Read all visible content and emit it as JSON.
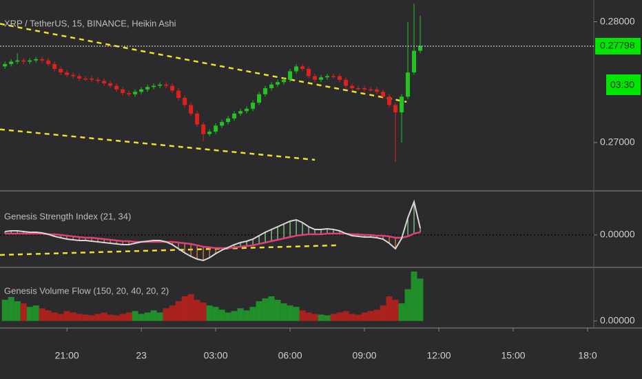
{
  "chart_data": [
    {
      "type": "candlestick",
      "title": "XRP / TetherUS, 15, BINANCE, Heikin Ashi",
      "x": [
        -5.5,
        -5.25,
        -5,
        -4.75,
        -4.5,
        -4.25,
        -4,
        -3.75,
        -3.5,
        -3.25,
        -3,
        -2.75,
        -2.5,
        -2.25,
        -2,
        -1.75,
        -1.5,
        -1.25,
        -1,
        -0.75,
        -0.5,
        -0.25,
        0,
        0.25,
        0.5,
        0.75,
        1,
        1.25,
        1.5,
        1.75,
        2,
        2.25,
        2.5,
        2.75,
        3,
        3.25,
        3.5,
        3.75,
        4,
        4.25,
        4.5,
        4.75,
        5,
        5.25,
        5.5,
        5.75,
        6,
        6.25,
        6.5,
        6.75,
        7,
        7.25,
        7.5,
        7.75,
        8,
        8.25,
        8.5,
        8.75,
        9,
        9.25,
        9.5,
        9.75,
        10,
        10.25,
        10.5,
        10.75,
        11,
        11.25
      ],
      "open": [
        0.2763,
        0.2765,
        0.2767,
        0.2768,
        0.2767,
        0.2768,
        0.2769,
        0.2768,
        0.2765,
        0.2761,
        0.2758,
        0.2756,
        0.2755,
        0.2753,
        0.2753,
        0.2752,
        0.2751,
        0.2749,
        0.2747,
        0.2744,
        0.2741,
        0.274,
        0.2742,
        0.2744,
        0.2746,
        0.2747,
        0.2748,
        0.2747,
        0.2743,
        0.2737,
        0.2731,
        0.2724,
        0.2715,
        0.2707,
        0.2709,
        0.2714,
        0.2717,
        0.272,
        0.2724,
        0.2726,
        0.2728,
        0.2733,
        0.274,
        0.2745,
        0.2748,
        0.275,
        0.2752,
        0.2759,
        0.2763,
        0.2761,
        0.2755,
        0.2752,
        0.2754,
        0.2755,
        0.2755,
        0.2752,
        0.2747,
        0.2745,
        0.2745,
        0.2744,
        0.2744,
        0.2742,
        0.2738,
        0.2731,
        0.2725,
        0.2738,
        0.2758,
        0.2776
      ],
      "high": [
        0.2767,
        0.2769,
        0.2774,
        0.277,
        0.277,
        0.2771,
        0.2771,
        0.277,
        0.2767,
        0.2763,
        0.276,
        0.2758,
        0.2757,
        0.2755,
        0.2755,
        0.2754,
        0.2753,
        0.2751,
        0.2749,
        0.2746,
        0.2743,
        0.2744,
        0.2746,
        0.2748,
        0.2749,
        0.275,
        0.275,
        0.2749,
        0.2745,
        0.2739,
        0.2733,
        0.2726,
        0.2717,
        0.2711,
        0.2716,
        0.2719,
        0.2722,
        0.2726,
        0.2728,
        0.273,
        0.2735,
        0.2742,
        0.2747,
        0.275,
        0.2752,
        0.2754,
        0.2761,
        0.2765,
        0.2765,
        0.2763,
        0.2757,
        0.2756,
        0.2757,
        0.2757,
        0.2757,
        0.2754,
        0.2749,
        0.2747,
        0.2747,
        0.2746,
        0.2746,
        0.2744,
        0.274,
        0.2733,
        0.274,
        0.28,
        0.2815,
        0.2805
      ],
      "low": [
        0.2761,
        0.2763,
        0.2765,
        0.2765,
        0.2765,
        0.2766,
        0.2766,
        0.2763,
        0.2759,
        0.2756,
        0.2754,
        0.2753,
        0.2751,
        0.2751,
        0.275,
        0.2749,
        0.2747,
        0.2745,
        0.2742,
        0.2739,
        0.2738,
        0.2738,
        0.274,
        0.2742,
        0.2744,
        0.2745,
        0.2745,
        0.2741,
        0.2735,
        0.2729,
        0.2722,
        0.2713,
        0.2701,
        0.2705,
        0.2707,
        0.2712,
        0.2715,
        0.2718,
        0.2722,
        0.2724,
        0.2726,
        0.2731,
        0.2738,
        0.2743,
        0.2746,
        0.2748,
        0.275,
        0.2757,
        0.2759,
        0.2753,
        0.275,
        0.275,
        0.2752,
        0.2753,
        0.275,
        0.2745,
        0.2743,
        0.2743,
        0.2742,
        0.2742,
        0.274,
        0.2736,
        0.2729,
        0.2684,
        0.27,
        0.2736,
        0.2756,
        0.2774
      ],
      "close": [
        0.2765,
        0.2767,
        0.2768,
        0.2767,
        0.2768,
        0.2769,
        0.2768,
        0.2765,
        0.2761,
        0.2758,
        0.2756,
        0.2755,
        0.2753,
        0.2753,
        0.2752,
        0.2751,
        0.2749,
        0.2747,
        0.2744,
        0.2741,
        0.274,
        0.2742,
        0.2744,
        0.2746,
        0.2747,
        0.2748,
        0.2747,
        0.2743,
        0.2737,
        0.2731,
        0.2724,
        0.2715,
        0.2707,
        0.2709,
        0.2714,
        0.2717,
        0.272,
        0.2724,
        0.2726,
        0.2728,
        0.2733,
        0.274,
        0.2745,
        0.2748,
        0.275,
        0.2752,
        0.2759,
        0.2763,
        0.2761,
        0.2755,
        0.2752,
        0.2754,
        0.2755,
        0.2755,
        0.2752,
        0.2747,
        0.2745,
        0.2745,
        0.2744,
        0.2744,
        0.2742,
        0.2738,
        0.2731,
        0.2725,
        0.2738,
        0.2758,
        0.2776,
        0.278
      ],
      "up_color": "#22c322",
      "down_color": "#e0201c",
      "xlim": [
        -5.7,
        18.25
      ],
      "xticks": [
        {
          "value": -3,
          "label": "21:00"
        },
        {
          "value": 0,
          "label": "23"
        },
        {
          "value": 3,
          "label": "03:00"
        },
        {
          "value": 6,
          "label": "06:00"
        },
        {
          "value": 9,
          "label": "09:00"
        },
        {
          "value": 12,
          "label": "12:00"
        },
        {
          "value": 15,
          "label": "15:00"
        },
        {
          "value": 18,
          "label": "18:0"
        }
      ],
      "ylim": [
        0.266,
        0.2818
      ],
      "yticks": [
        {
          "value": 0.28,
          "label": "0.28000"
        },
        {
          "value": 0.27,
          "label": "0.27000"
        }
      ],
      "last_price": {
        "value": 0.27798,
        "label": "0.27798"
      },
      "countdown": "03:30",
      "trend_color": "#f2e02a",
      "trend_lines": [
        {
          "x": [
            -5.7,
            10.7
          ],
          "y": [
            0.27983,
            0.27337
          ]
        },
        {
          "x": [
            -5.7,
            7.0
          ],
          "y": [
            0.27109,
            0.26857
          ]
        }
      ]
    },
    {
      "type": "line",
      "title": "Genesis Strength Index (21, 34)",
      "series": [
        {
          "color": "#d8d8d8",
          "values": [
            5,
            6,
            6,
            5,
            4,
            4,
            3,
            1,
            -2,
            -4,
            -6,
            -7,
            -8,
            -8,
            -9,
            -10,
            -11,
            -12,
            -13,
            -14,
            -14,
            -12,
            -10,
            -9,
            -8,
            -8,
            -10,
            -14,
            -20,
            -26,
            -31,
            -35,
            -37,
            -33,
            -27,
            -22,
            -18,
            -14,
            -11,
            -9,
            -6,
            -1,
            4,
            8,
            12,
            16,
            20,
            22,
            18,
            12,
            8,
            8,
            9,
            8,
            6,
            2,
            -1,
            -2,
            -3,
            -3,
            -4,
            -6,
            -12,
            -20,
            -5,
            25,
            48,
            10
          ]
        },
        {
          "color": "#e0407a",
          "values": [
            2,
            2,
            2,
            2,
            2,
            2,
            2,
            1,
            1,
            0,
            -1,
            -2,
            -3,
            -4,
            -4,
            -5,
            -6,
            -7,
            -8,
            -9,
            -9,
            -10,
            -10,
            -10,
            -10,
            -10,
            -10,
            -10,
            -11,
            -12,
            -13,
            -15,
            -17,
            -18,
            -19,
            -19,
            -19,
            -18,
            -17,
            -16,
            -15,
            -13,
            -11,
            -9,
            -7,
            -5,
            -3,
            -1,
            0,
            1,
            1,
            1,
            2,
            2,
            2,
            2,
            1,
            1,
            0,
            0,
            -1,
            -1,
            -2,
            -4,
            -4,
            -2,
            2,
            4
          ]
        }
      ],
      "hist_up_color": "#8fe08f",
      "hist_down_color": "#f08a3a",
      "ylim": [
        -47,
        63
      ],
      "yticks": [
        {
          "value": 0,
          "label": "0.00000"
        }
      ],
      "trend_color": "#f2e02a",
      "trend_lines": [
        {
          "x": [
            -5.7,
            7.9
          ],
          "y": [
            -29,
            -15
          ]
        }
      ]
    },
    {
      "type": "bar",
      "title": "Genesis Volume Flow (150, 20, 40, 20, 2)",
      "values": [
        30,
        34,
        28,
        25,
        20,
        22,
        18,
        15,
        12,
        10,
        14,
        12,
        10,
        9,
        8,
        10,
        12,
        9,
        8,
        10,
        12,
        14,
        10,
        12,
        15,
        12,
        18,
        22,
        28,
        35,
        38,
        30,
        26,
        22,
        20,
        16,
        12,
        14,
        18,
        15,
        20,
        28,
        32,
        35,
        30,
        25,
        22,
        20,
        15,
        12,
        10,
        9,
        8,
        10,
        12,
        14,
        10,
        9,
        12,
        14,
        16,
        22,
        35,
        30,
        25,
        45,
        70,
        60
      ],
      "up_color": "#1f9a2a",
      "down_color": "#b8201c",
      "ylim": [
        -10,
        75
      ],
      "yticks": [
        {
          "value": 0,
          "label": "0.00000"
        }
      ]
    }
  ]
}
